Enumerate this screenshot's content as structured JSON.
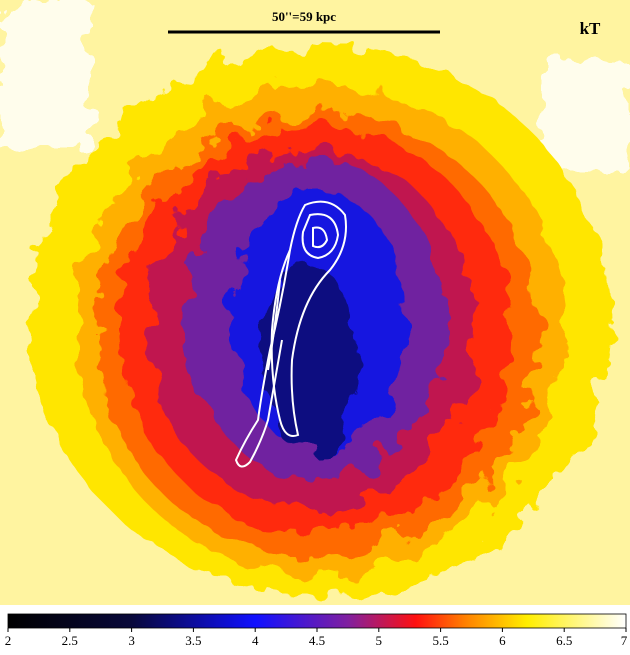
{
  "scale_bar": {
    "label": "50''=59 kpc"
  },
  "map_label": "kT",
  "colorbar": {
    "lim": [
      2,
      7
    ],
    "ticks": [
      2,
      2.5,
      3,
      3.5,
      4,
      4.5,
      5,
      5.5,
      6,
      6.5,
      7
    ]
  }
}
